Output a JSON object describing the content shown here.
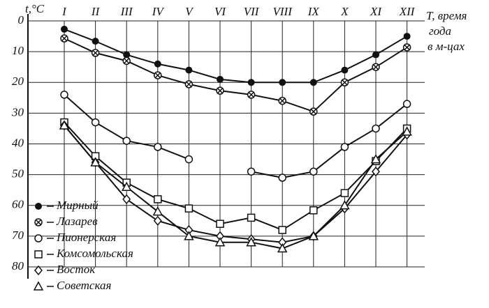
{
  "chart_data": {
    "type": "line",
    "y_label": "t,°C",
    "x_label": [
      "T, время",
      "года",
      "в м-цах"
    ],
    "categories": [
      "I",
      "II",
      "III",
      "IV",
      "V",
      "VI",
      "VII",
      "VIII",
      "IX",
      "X",
      "XI",
      "XII"
    ],
    "ylim": [
      -80,
      0
    ],
    "yticks": [
      0,
      {
        "value": -10,
        "label": "10"
      },
      {
        "value": -20,
        "label": "20"
      },
      {
        "value": -30,
        "label": "30"
      },
      {
        "value": -40,
        "label": "40"
      },
      {
        "value": -50,
        "label": "50"
      },
      {
        "value": -60,
        "label": "60"
      },
      {
        "value": -70,
        "label": "70"
      },
      {
        "value": -80,
        "label": "80"
      }
    ],
    "grid": true,
    "legend": "lower-left",
    "series": [
      {
        "name": "Мирный",
        "color": "#111111",
        "marker": "filled-circle",
        "values": [
          -2.7,
          -6.6,
          -11,
          -14,
          -16,
          -19,
          -20,
          -20,
          -20,
          -16,
          -11,
          -5
        ]
      },
      {
        "name": "Лазарев",
        "color": "#111111",
        "marker": "circle-x",
        "values": [
          -5.7,
          -10.4,
          -13,
          -17.7,
          -20.6,
          -22.7,
          -24,
          -26,
          -29.5,
          -20,
          -15,
          -8.6
        ]
      },
      {
        "name": "Пионерская",
        "color": "#111111",
        "marker": "circle",
        "values": [
          -24,
          -33,
          -39,
          -41,
          -45,
          null,
          -49,
          -51,
          -49,
          -41,
          -35,
          -27
        ]
      },
      {
        "name": "Комсомольская",
        "color": "#111111",
        "marker": "square",
        "values": [
          -33,
          -44,
          -52.6,
          -58,
          -61,
          -66,
          -64,
          -68,
          -61.6,
          -56,
          -45.6,
          -35
        ]
      },
      {
        "name": "Восток",
        "color": "#111111",
        "marker": "diamond",
        "values": [
          -34,
          -46,
          -58,
          -65,
          -68,
          -70,
          -71,
          -72,
          -70,
          -61,
          -49,
          -37
        ]
      },
      {
        "name": "Советская",
        "color": "#111111",
        "marker": "triangle",
        "values": [
          -34,
          -46,
          -54,
          -62,
          -70,
          -72,
          -72,
          -74,
          -70,
          -60,
          -45,
          -36
        ]
      }
    ]
  }
}
